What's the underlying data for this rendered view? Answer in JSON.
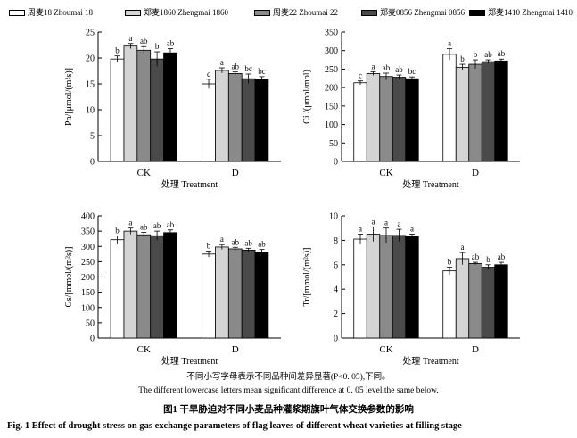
{
  "legend": [
    {
      "label": "周麦18 Zhoumai 18",
      "color": "#ffffff"
    },
    {
      "label": "郑麦1860 Zhengmai 1860",
      "color": "#d4d4d4"
    },
    {
      "label": "周麦22 Zhoumai 22",
      "color": "#8a8a8a"
    },
    {
      "label": "郑麦0856 Zhengmai 0856",
      "color": "#4a4a4a"
    },
    {
      "label": "郑麦1410 Zhengmai 1410",
      "color": "#000000"
    }
  ],
  "notes": {
    "zh": "不同小写字母表示不同品种间差异显著(P<0. 05),下同。",
    "en": "The different lowercase letters mean significant difference at 0. 05 level,the same below."
  },
  "caption": {
    "zh": "图1    干旱胁迫对不同小麦品种灌浆期旗叶气体交换参数的影响",
    "en": "Fig. 1    Effect of drought stress on gas exchange parameters of  flag leaves of different wheat varieties at filling stage"
  },
  "chart_data": [
    {
      "type": "bar",
      "ylabel": "Pn/[μmol/(m²s)]",
      "xlabel": "处理 Treatment",
      "categories": [
        "CK",
        "D"
      ],
      "ylim": [
        0,
        25
      ],
      "yticks": [
        0,
        5,
        10,
        15,
        20,
        25
      ],
      "series": [
        {
          "name": "周麦18 Zhoumai 18",
          "values": [
            19.8,
            15.0
          ],
          "errors": [
            0.6,
            0.9
          ],
          "letters": [
            "b",
            "c"
          ]
        },
        {
          "name": "郑麦1860 Zhengmai 1860",
          "values": [
            22.3,
            17.6
          ],
          "errors": [
            0.5,
            0.5
          ],
          "letters": [
            "a",
            "a"
          ]
        },
        {
          "name": "周麦22 Zhoumai 22",
          "values": [
            21.5,
            17.0
          ],
          "errors": [
            0.7,
            0.3
          ],
          "letters": [
            "ab",
            "ab"
          ]
        },
        {
          "name": "郑麦0856 Zhengmai 0856",
          "values": [
            19.8,
            16.0
          ],
          "errors": [
            1.4,
            0.9
          ],
          "letters": [
            "b",
            "bc"
          ]
        },
        {
          "name": "郑麦1410 Zhengmai 1410",
          "values": [
            21.0,
            15.8
          ],
          "errors": [
            0.8,
            0.6
          ],
          "letters": [
            "ab",
            "bc"
          ]
        }
      ]
    },
    {
      "type": "bar",
      "ylabel": "Ci /(μmol/mol)",
      "xlabel": "处理 Treatment",
      "categories": [
        "CK",
        "D"
      ],
      "ylim": [
        0,
        350
      ],
      "yticks": [
        0,
        50,
        100,
        150,
        200,
        250,
        300,
        350
      ],
      "series": [
        {
          "name": "周麦18 Zhoumai 18",
          "values": [
            213,
            290
          ],
          "errors": [
            5,
            15
          ],
          "letters": [
            "c",
            "a"
          ]
        },
        {
          "name": "郑麦1860 Zhengmai 1860",
          "values": [
            238,
            255
          ],
          "errors": [
            5,
            8
          ],
          "letters": [
            "a",
            "b"
          ]
        },
        {
          "name": "周麦22 Zhoumai 22",
          "values": [
            230,
            263
          ],
          "errors": [
            9,
            12
          ],
          "letters": [
            "ab",
            "b"
          ]
        },
        {
          "name": "郑麦0856 Zhengmai 0856",
          "values": [
            228,
            270
          ],
          "errors": [
            6,
            5
          ],
          "letters": [
            "ab",
            "ab"
          ]
        },
        {
          "name": "郑麦1410 Zhengmai 1410",
          "values": [
            224,
            272
          ],
          "errors": [
            5,
            5
          ],
          "letters": [
            "bc",
            "ab"
          ]
        }
      ]
    },
    {
      "type": "bar",
      "ylabel": "Gs/[mmol/(m²s)]",
      "xlabel": "处理 Treatment",
      "categories": [
        "CK",
        "D"
      ],
      "ylim": [
        0,
        400
      ],
      "yticks": [
        0,
        50,
        100,
        150,
        200,
        250,
        300,
        350,
        400
      ],
      "series": [
        {
          "name": "周麦18 Zhoumai 18",
          "values": [
            322,
            275
          ],
          "errors": [
            12,
            10
          ],
          "letters": [
            "b",
            "b"
          ]
        },
        {
          "name": "郑麦1860 Zhengmai 1860",
          "values": [
            350,
            298
          ],
          "errors": [
            10,
            8
          ],
          "letters": [
            "a",
            "a"
          ]
        },
        {
          "name": "周麦22 Zhoumai 22",
          "values": [
            338,
            292
          ],
          "errors": [
            8,
            5
          ],
          "letters": [
            "ab",
            "ab"
          ]
        },
        {
          "name": "郑麦0856 Zhengmai 0856",
          "values": [
            335,
            288
          ],
          "errors": [
            15,
            6
          ],
          "letters": [
            "ab",
            "ab"
          ]
        },
        {
          "name": "郑麦1410 Zhengmai 1410",
          "values": [
            345,
            280
          ],
          "errors": [
            9,
            10
          ],
          "letters": [
            "ab",
            "ab"
          ]
        }
      ]
    },
    {
      "type": "bar",
      "ylabel": "Tr/[mmol/(m²s)]",
      "xlabel": "处理 Treatment",
      "categories": [
        "CK",
        "D"
      ],
      "ylim": [
        0,
        10
      ],
      "yticks": [
        0,
        2,
        4,
        6,
        8,
        10
      ],
      "series": [
        {
          "name": "周麦18 Zhoumai 18",
          "values": [
            8.1,
            5.5
          ],
          "errors": [
            0.4,
            0.3
          ],
          "letters": [
            "a",
            "b"
          ]
        },
        {
          "name": "郑麦1860 Zhengmai 1860",
          "values": [
            8.5,
            6.5
          ],
          "errors": [
            0.6,
            0.5
          ],
          "letters": [
            "a",
            "a"
          ]
        },
        {
          "name": "周麦22 Zhoumai 22",
          "values": [
            8.4,
            6.1
          ],
          "errors": [
            0.6,
            0.1
          ],
          "letters": [
            "a",
            "ab"
          ]
        },
        {
          "name": "郑麦0856 Zhengmai 0856",
          "values": [
            8.4,
            5.8
          ],
          "errors": [
            0.5,
            0.2
          ],
          "letters": [
            "a",
            "b"
          ]
        },
        {
          "name": "郑麦1410 Zhengmai 1410",
          "values": [
            8.3,
            6.0
          ],
          "errors": [
            0.2,
            0.2
          ],
          "letters": [
            "a",
            "ab"
          ]
        }
      ]
    }
  ]
}
